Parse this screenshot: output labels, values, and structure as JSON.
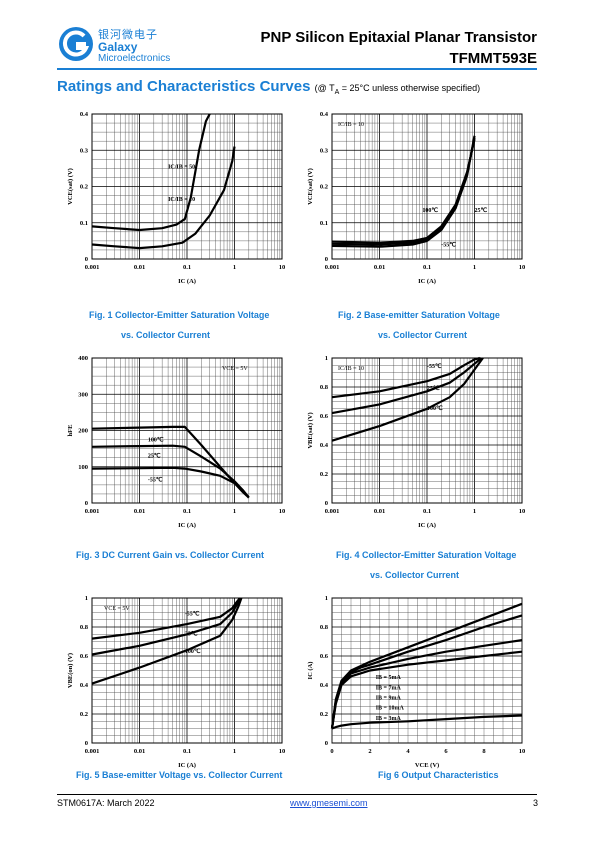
{
  "header": {
    "logo_cn": "银河微电子",
    "logo_en_1": "Galaxy",
    "logo_en_2": "Microelectronics",
    "title": "PNP Silicon Epitaxial Planar Transistor",
    "part_number": "TFMMT593E"
  },
  "section": {
    "title": "Ratings and Characteristics Curves",
    "condition_prefix": "(@ T",
    "condition_sub": "A",
    "condition_suffix": " = 25°C unless otherwise specified)"
  },
  "colors": {
    "accent": "#1a7fd4",
    "ink": "#000000"
  },
  "figures": [
    {
      "caption_1": "Fig. 1    Collector-Emitter Saturation Voltage",
      "caption_2": "vs. Collector Current"
    },
    {
      "caption_1": "Fig.    2    Base-emitter Saturation Voltage",
      "caption_2": "vs. Collector Current"
    },
    {
      "caption_1": "Fig. 3    DC Current Gain vs. Collector Current",
      "caption_2": ""
    },
    {
      "caption_1": "Fig. 4    Collector-Emitter Saturation Voltage",
      "caption_2": "vs. Collector Current"
    },
    {
      "caption_1": "Fig. 5    Base-emitter Voltage vs. Collector Current",
      "caption_2": ""
    },
    {
      "caption_1": "Fig 6    Output Characteristics",
      "caption_2": ""
    }
  ],
  "chart_data": [
    {
      "type": "line",
      "xlabel": "IC (A)",
      "ylabel": "VCE(sat) (V)",
      "xscale": "log",
      "xlim": [
        0.001,
        10
      ],
      "ylim": [
        0,
        0.4
      ],
      "xticks": [
        "0.001",
        "0.01",
        "0.1",
        "1",
        "10"
      ],
      "yticks": [
        "0",
        "0.1",
        "0.2",
        "0.3",
        "0.4"
      ],
      "series": [
        {
          "name": "IC/IB = 50",
          "x": [
            0.001,
            0.003,
            0.01,
            0.03,
            0.06,
            0.09,
            0.12,
            0.18,
            0.25,
            0.3
          ],
          "y": [
            0.09,
            0.085,
            0.08,
            0.085,
            0.095,
            0.11,
            0.17,
            0.3,
            0.38,
            0.4
          ]
        },
        {
          "name": "IC/IB = 10",
          "x": [
            0.001,
            0.003,
            0.01,
            0.03,
            0.08,
            0.15,
            0.3,
            0.6,
            0.9,
            1.0
          ],
          "y": [
            0.04,
            0.035,
            0.03,
            0.035,
            0.045,
            0.07,
            0.12,
            0.19,
            0.27,
            0.31
          ]
        }
      ],
      "annotations": [
        "IC/IB = 50",
        "IC/IB = 10"
      ]
    },
    {
      "type": "line",
      "xlabel": "IC (A)",
      "ylabel": "VCE(sat) (V)",
      "xscale": "log",
      "xlim": [
        0.001,
        10
      ],
      "ylim": [
        0,
        0.4
      ],
      "xticks": [
        "0.001",
        "0.01",
        "0.1",
        "1",
        "10"
      ],
      "yticks": [
        "0",
        "0.1",
        "0.2",
        "0.3",
        "0.4"
      ],
      "annotation_top": "IC/IB = 10",
      "series": [
        {
          "name": "100℃",
          "x": [
            0.001,
            0.01,
            0.05,
            0.1,
            0.2,
            0.4,
            0.7,
            1.0
          ],
          "y": [
            0.048,
            0.045,
            0.05,
            0.058,
            0.09,
            0.15,
            0.24,
            0.33
          ]
        },
        {
          "name": "25℃",
          "x": [
            0.001,
            0.01,
            0.05,
            0.1,
            0.2,
            0.4,
            0.7,
            1.0
          ],
          "y": [
            0.042,
            0.04,
            0.045,
            0.054,
            0.085,
            0.145,
            0.235,
            0.335
          ]
        },
        {
          "name": "-55℃",
          "x": [
            0.001,
            0.01,
            0.05,
            0.1,
            0.2,
            0.4,
            0.7,
            1.0
          ],
          "y": [
            0.036,
            0.034,
            0.04,
            0.05,
            0.08,
            0.14,
            0.23,
            0.34
          ]
        }
      ]
    },
    {
      "type": "line",
      "xlabel": "IC (A)",
      "ylabel": "hFE",
      "xscale": "log",
      "xlim": [
        0.001,
        10
      ],
      "ylim": [
        0,
        400
      ],
      "xticks": [
        "0.001",
        "0.01",
        "0.1",
        "1",
        "10"
      ],
      "yticks": [
        "0",
        "100",
        "200",
        "300",
        "400"
      ],
      "annotation_top": "VCE = 5V",
      "series": [
        {
          "name": "100℃",
          "x": [
            0.001,
            0.01,
            0.05,
            0.09,
            0.2,
            0.5,
            1.0,
            1.5,
            2.0
          ],
          "y": [
            205,
            208,
            210,
            210,
            160,
            100,
            55,
            30,
            15
          ]
        },
        {
          "name": "25℃",
          "x": [
            0.001,
            0.01,
            0.05,
            0.09,
            0.2,
            0.5,
            1.0,
            1.5,
            2.0
          ],
          "y": [
            155,
            157,
            158,
            155,
            128,
            95,
            60,
            35,
            15
          ]
        },
        {
          "name": "-55℃",
          "x": [
            0.001,
            0.01,
            0.05,
            0.09,
            0.2,
            0.5,
            1.0,
            1.5,
            2.0
          ],
          "y": [
            95,
            96,
            97,
            95,
            87,
            75,
            55,
            35,
            15
          ]
        }
      ]
    },
    {
      "type": "line",
      "xlabel": "IC (A)",
      "ylabel": "VBE(sat) (V)",
      "xscale": "log",
      "xlim": [
        0.001,
        10
      ],
      "ylim": [
        0,
        1
      ],
      "xticks": [
        "0.001",
        "0.01",
        "0.1",
        "1",
        "10"
      ],
      "yticks": [
        "0",
        "0.2",
        "0.4",
        "0.6",
        "0.8",
        "1"
      ],
      "annotation_top": "IC/IB = 10",
      "series": [
        {
          "name": "-55℃",
          "x": [
            0.001,
            0.01,
            0.1,
            0.3,
            0.6,
            1.0,
            1.3
          ],
          "y": [
            0.73,
            0.77,
            0.84,
            0.89,
            0.95,
            0.99,
            1.0
          ]
        },
        {
          "name": "25℃",
          "x": [
            0.001,
            0.01,
            0.1,
            0.3,
            0.6,
            1.0,
            1.4
          ],
          "y": [
            0.62,
            0.68,
            0.77,
            0.83,
            0.9,
            0.96,
            1.0
          ]
        },
        {
          "name": "100℃",
          "x": [
            0.001,
            0.01,
            0.1,
            0.3,
            0.6,
            1.0,
            1.5
          ],
          "y": [
            0.43,
            0.53,
            0.65,
            0.73,
            0.82,
            0.92,
            1.0
          ]
        }
      ]
    },
    {
      "type": "line",
      "xlabel": "IC (A)",
      "ylabel": "VBE(on) (V)",
      "xscale": "log",
      "xlim": [
        0.001,
        10
      ],
      "ylim": [
        0,
        1
      ],
      "xticks": [
        "0.001",
        "0.01",
        "0.1",
        "1",
        "10"
      ],
      "yticks": [
        "0",
        "0.2",
        "0.4",
        "0.6",
        "0.8",
        "1"
      ],
      "annotation_top": "VCE = 5V",
      "series": [
        {
          "name": "-55℃",
          "x": [
            0.001,
            0.01,
            0.1,
            0.5,
            0.9,
            1.1,
            1.3
          ],
          "y": [
            0.72,
            0.76,
            0.82,
            0.87,
            0.93,
            0.97,
            1.0
          ]
        },
        {
          "name": "25℃",
          "x": [
            0.001,
            0.01,
            0.1,
            0.5,
            0.9,
            1.15,
            1.35
          ],
          "y": [
            0.61,
            0.67,
            0.75,
            0.82,
            0.9,
            0.96,
            1.0
          ]
        },
        {
          "name": "100℃",
          "x": [
            0.001,
            0.01,
            0.1,
            0.5,
            0.9,
            1.2,
            1.4
          ],
          "y": [
            0.41,
            0.52,
            0.64,
            0.74,
            0.85,
            0.94,
            1.0
          ]
        }
      ]
    },
    {
      "type": "line",
      "xlabel": "VCE (V)",
      "ylabel": "IC (A)",
      "xlim": [
        0,
        10
      ],
      "ylim": [
        0,
        1
      ],
      "xticks": [
        "0",
        "2",
        "4",
        "6",
        "8",
        "10"
      ],
      "yticks": [
        "0",
        "0.2",
        "0.4",
        "0.6",
        "0.8",
        "1"
      ],
      "legend": [
        "IB = 5mA",
        "IB = 7mA",
        "IB = 9mA",
        "IB = 10mA",
        "IB = 3mA"
      ],
      "series": [
        {
          "name": "IB = 10mA",
          "x": [
            0,
            0.2,
            0.5,
            1,
            1.5,
            2,
            4,
            6,
            8,
            10
          ],
          "y": [
            0.1,
            0.3,
            0.43,
            0.5,
            0.53,
            0.56,
            0.66,
            0.76,
            0.86,
            0.96
          ]
        },
        {
          "name": "IB = 9mA",
          "x": [
            0,
            0.2,
            0.5,
            1,
            1.5,
            2,
            4,
            6,
            8,
            10
          ],
          "y": [
            0.1,
            0.29,
            0.42,
            0.49,
            0.52,
            0.54,
            0.63,
            0.71,
            0.8,
            0.88
          ]
        },
        {
          "name": "IB = 7mA",
          "x": [
            0,
            0.2,
            0.5,
            1,
            1.5,
            2,
            4,
            6,
            8,
            10
          ],
          "y": [
            0.1,
            0.28,
            0.41,
            0.48,
            0.5,
            0.52,
            0.58,
            0.63,
            0.67,
            0.71
          ]
        },
        {
          "name": "IB = 5mA",
          "x": [
            0,
            0.2,
            0.5,
            1,
            1.5,
            2,
            4,
            6,
            8,
            10
          ],
          "y": [
            0.1,
            0.27,
            0.4,
            0.46,
            0.48,
            0.5,
            0.54,
            0.57,
            0.6,
            0.63
          ]
        },
        {
          "name": "IB = 3mA",
          "x": [
            0,
            0.2,
            0.5,
            1,
            2,
            4,
            6,
            8,
            10
          ],
          "y": [
            0.1,
            0.11,
            0.12,
            0.13,
            0.14,
            0.15,
            0.165,
            0.18,
            0.19
          ]
        }
      ]
    }
  ],
  "footer": {
    "doc": "STM0617A: March 2022",
    "url": "www.gmesemi.com",
    "page": "3"
  }
}
